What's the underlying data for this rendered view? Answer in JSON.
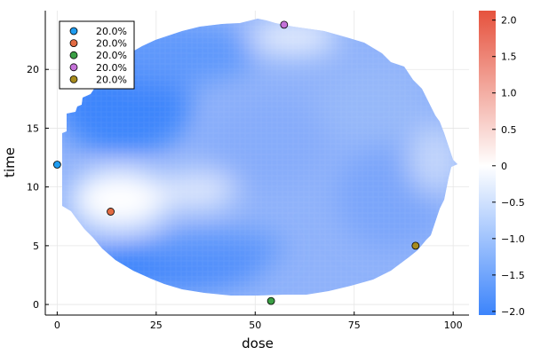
{
  "chart_data": {
    "type": "heatmap",
    "xlabel": "dose",
    "ylabel": "time",
    "xlim": [
      -3,
      104
    ],
    "ylim": [
      -0.9,
      25
    ],
    "xticks": [
      0,
      25,
      50,
      75,
      100
    ],
    "yticks": [
      0,
      5,
      10,
      15,
      20
    ],
    "grid": true,
    "colorbar": {
      "min": -2.05,
      "max": 2.13,
      "ticks": [
        -2.0,
        -1.5,
        -1.0,
        -0.5,
        0,
        0.5,
        1.0,
        1.5,
        2.0
      ],
      "tick_labels": [
        "−2.0",
        "−1.5",
        "−1.0",
        "−0.5",
        "0",
        "0.5",
        "1.0",
        "1.5",
        "2.0"
      ],
      "colors": {
        "low": "#3c84fb",
        "mid": "#ffffff",
        "high": "#e6523d"
      }
    },
    "legend": {
      "position": "top-left"
    },
    "series": [
      {
        "name": "20.0%",
        "color": "#1f9cf0",
        "points": [
          [
            0,
            11.9
          ]
        ]
      },
      {
        "name": "20.0%",
        "color": "#e26b43",
        "points": [
          [
            13.5,
            7.9
          ]
        ]
      },
      {
        "name": "20.0%",
        "color": "#3b9f45",
        "points": [
          [
            54,
            0.3
          ]
        ]
      },
      {
        "name": "20.0%",
        "color": "#c472d8",
        "points": [
          [
            57.3,
            23.8
          ]
        ]
      },
      {
        "name": "20.0%",
        "color": "#a78b1d",
        "points": [
          [
            90.5,
            5.0
          ]
        ]
      }
    ]
  }
}
